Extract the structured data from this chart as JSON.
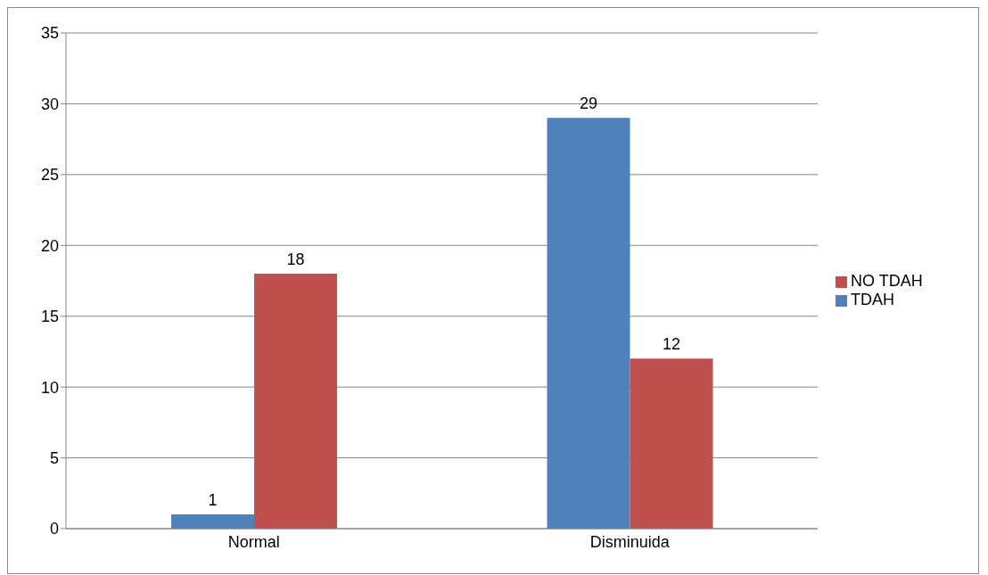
{
  "chart_data": {
    "type": "bar",
    "categories": [
      "Normal",
      "Disminuida"
    ],
    "series": [
      {
        "name": "TDAH",
        "color": "#4f81bd",
        "values": [
          1,
          29
        ]
      },
      {
        "name": "NO TDAH",
        "color": "#c0504d",
        "values": [
          18,
          12
        ]
      }
    ],
    "ylim": [
      0,
      35
    ],
    "yticks": [
      0,
      5,
      10,
      15,
      20,
      25,
      30,
      35
    ],
    "grid": "y",
    "legend": "right",
    "data_labels": true
  }
}
